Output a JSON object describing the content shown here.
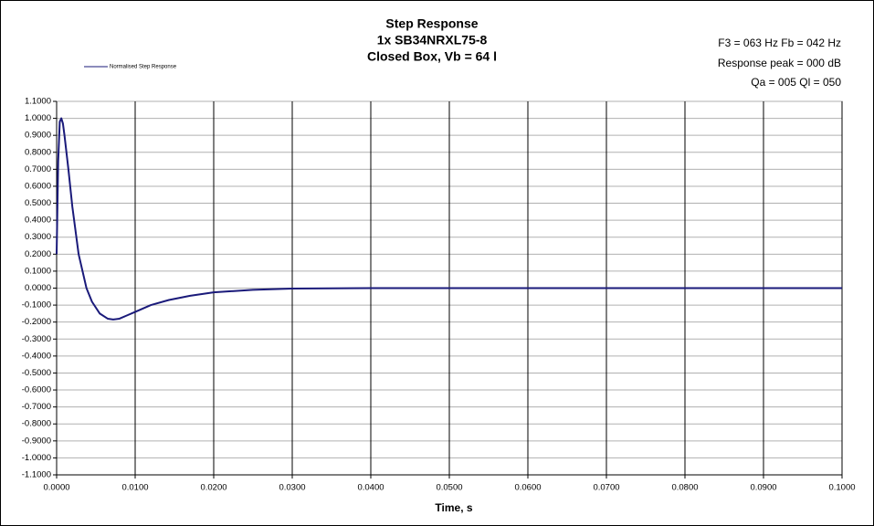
{
  "chart_data": {
    "type": "line",
    "title": [
      "Step Response",
      "1x SB34NRXL75-8",
      "Closed Box, Vb = 64 l"
    ],
    "annotations": [
      "F3 = 063 Hz  Fb = 042 Hz",
      "Response peak = 000 dB",
      "Qa = 005  Ql = 050"
    ],
    "x_label": "Time, s",
    "x": [
      0,
      0.0002,
      0.0004,
      0.0006,
      0.0008,
      0.001,
      0.0015,
      0.002,
      0.0028,
      0.0038,
      0.0045,
      0.0055,
      0.0065,
      0.0072,
      0.008,
      0.009,
      0.01,
      0.012,
      0.0143,
      0.017,
      0.02,
      0.025,
      0.03,
      0.04,
      0.06,
      0.1
    ],
    "series": [
      {
        "name": "Normalised Step Response",
        "color": "#1a1a7a",
        "values": [
          0.2,
          0.75,
          0.98,
          1.0,
          0.97,
          0.9,
          0.7,
          0.48,
          0.2,
          0.0,
          -0.08,
          -0.15,
          -0.18,
          -0.185,
          -0.18,
          -0.16,
          -0.14,
          -0.1,
          -0.07,
          -0.045,
          -0.025,
          -0.01,
          -0.003,
          0,
          0,
          0
        ]
      }
    ],
    "xlim": [
      0,
      0.1
    ],
    "xticks": [
      {
        "value": 0,
        "label": "0.0000"
      },
      {
        "value": 0.01,
        "label": "0.0100"
      },
      {
        "value": 0.02,
        "label": "0.0200"
      },
      {
        "value": 0.03,
        "label": "0.0300"
      },
      {
        "value": 0.04,
        "label": "0.0400"
      },
      {
        "value": 0.05,
        "label": "0.0500"
      },
      {
        "value": 0.06,
        "label": "0.0600"
      },
      {
        "value": 0.07,
        "label": "0.0700"
      },
      {
        "value": 0.08,
        "label": "0.0800"
      },
      {
        "value": 0.09,
        "label": "0.0900"
      },
      {
        "value": 0.1,
        "label": "0.1000"
      }
    ],
    "ylim": [
      -1.1,
      1.1
    ],
    "yticks": [
      {
        "value": -1.1,
        "label": "-1.1000"
      },
      {
        "value": -1.0,
        "label": "-1.0000"
      },
      {
        "value": -0.9,
        "label": "-0.9000"
      },
      {
        "value": -0.8,
        "label": "-0.8000"
      },
      {
        "value": -0.7,
        "label": "-0.7000"
      },
      {
        "value": -0.6,
        "label": "-0.6000"
      },
      {
        "value": -0.5,
        "label": "-0.5000"
      },
      {
        "value": -0.4,
        "label": "-0.4000"
      },
      {
        "value": -0.3,
        "label": "-0.3000"
      },
      {
        "value": -0.2,
        "label": "-0.2000"
      },
      {
        "value": -0.1,
        "label": "-0.1000"
      },
      {
        "value": 0,
        "label": "0.0000"
      },
      {
        "value": 0.1,
        "label": "0.1000"
      },
      {
        "value": 0.2,
        "label": "0.2000"
      },
      {
        "value": 0.3,
        "label": "0.3000"
      },
      {
        "value": 0.4,
        "label": "0.4000"
      },
      {
        "value": 0.5,
        "label": "0.5000"
      },
      {
        "value": 0.6,
        "label": "0.6000"
      },
      {
        "value": 0.7,
        "label": "0.7000"
      },
      {
        "value": 0.8,
        "label": "0.8000"
      },
      {
        "value": 0.9,
        "label": "0.9000"
      },
      {
        "value": 1.0,
        "label": "1.0000"
      },
      {
        "value": 1.1,
        "label": "1.1000"
      }
    ],
    "grid": true
  }
}
